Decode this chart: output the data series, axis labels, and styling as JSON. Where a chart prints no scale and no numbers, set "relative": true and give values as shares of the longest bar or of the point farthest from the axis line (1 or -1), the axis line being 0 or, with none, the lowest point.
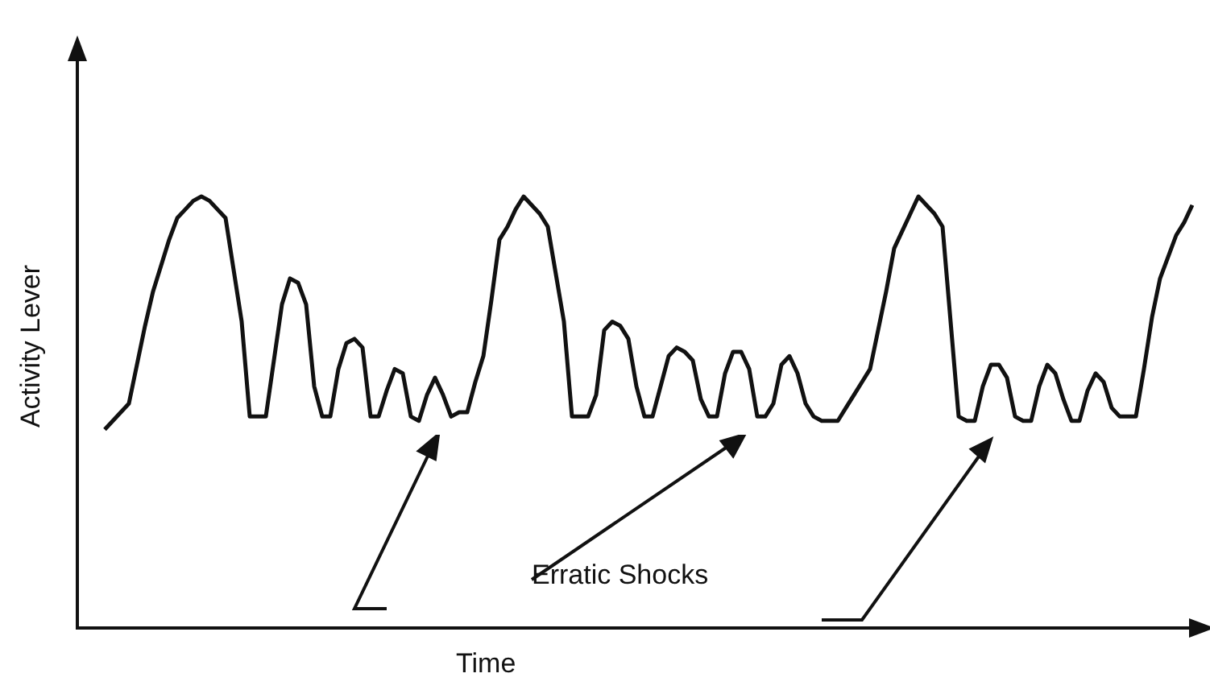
{
  "chart_data": {
    "type": "line",
    "relative": true,
    "xlabel": "Time",
    "ylabel": "Activity Lever",
    "annotations": [
      "Erratic Shocks"
    ],
    "color": "#111111",
    "marker": "none",
    "line_style": "solid",
    "legend": false,
    "categories": [
      null,
      null,
      null,
      null,
      null,
      null,
      null,
      null,
      null,
      null,
      null,
      null,
      null,
      null,
      null,
      null,
      null,
      null,
      null,
      null,
      null,
      null,
      null,
      null,
      null,
      null,
      null,
      null,
      null,
      null,
      null,
      null,
      null,
      null,
      null,
      null,
      null,
      null,
      null,
      null,
      null,
      null,
      null,
      null,
      null,
      null,
      null,
      null,
      null,
      null,
      null,
      null,
      null,
      null,
      null,
      null,
      null,
      null,
      null,
      null,
      null,
      null,
      null,
      null,
      null,
      null,
      null,
      null,
      null,
      null,
      null,
      null,
      null,
      null,
      null,
      null,
      null,
      null,
      null,
      null,
      null,
      null,
      null,
      null,
      null,
      null,
      null,
      null,
      null,
      null,
      null,
      null,
      null,
      null,
      null,
      null,
      null,
      null,
      null,
      null,
      null,
      null,
      null,
      null,
      null,
      null,
      null,
      null,
      null,
      null,
      null,
      null,
      null,
      null,
      null,
      null,
      null,
      null,
      null,
      null,
      null,
      null,
      null,
      null,
      null,
      null,
      null,
      null,
      null,
      null,
      null,
      null,
      null,
      null,
      null,
      null
    ],
    "values": [
      0.46,
      0.48,
      0.5,
      0.52,
      0.61,
      0.7,
      0.78,
      0.84,
      0.9,
      0.95,
      0.97,
      0.99,
      1,
      0.99,
      0.97,
      0.95,
      0.83,
      0.71,
      0.49,
      0.49,
      0.49,
      0.62,
      0.75,
      0.81,
      0.8,
      0.75,
      0.56,
      0.49,
      0.49,
      0.6,
      0.66,
      0.67,
      0.65,
      0.49,
      0.49,
      0.55,
      0.6,
      0.59,
      0.49,
      0.48,
      0.54,
      0.58,
      0.54,
      0.49,
      0.5,
      0.5,
      0.57,
      0.63,
      0.76,
      0.9,
      0.93,
      0.97,
      1,
      0.98,
      0.96,
      0.93,
      0.82,
      0.71,
      0.49,
      0.49,
      0.49,
      0.54,
      0.69,
      0.71,
      0.7,
      0.67,
      0.56,
      0.49,
      0.49,
      0.56,
      0.63,
      0.65,
      0.64,
      0.62,
      0.53,
      0.49,
      0.49,
      0.59,
      0.64,
      0.64,
      0.6,
      0.49,
      0.49,
      0.52,
      0.61,
      0.63,
      0.59,
      0.52,
      0.49,
      0.48,
      0.48,
      0.48,
      0.51,
      0.54,
      0.57,
      0.6,
      0.69,
      0.78,
      0.88,
      0.92,
      0.96,
      1,
      0.98,
      0.96,
      0.93,
      0.71,
      0.49,
      0.48,
      0.48,
      0.56,
      0.61,
      0.61,
      0.58,
      0.49,
      0.48,
      0.48,
      0.56,
      0.61,
      0.59,
      0.53,
      0.48,
      0.48,
      0.55,
      0.59,
      0.57,
      0.51,
      0.49,
      0.49,
      0.49,
      0.6,
      0.72,
      0.81,
      0.86,
      0.91,
      0.94,
      0.98
    ]
  }
}
